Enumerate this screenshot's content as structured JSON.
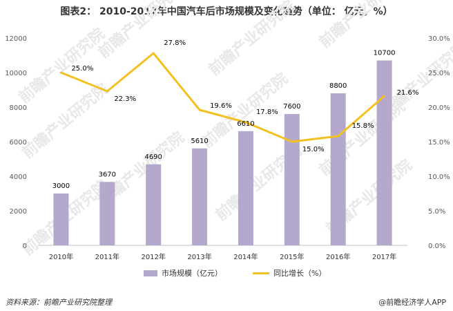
{
  "chart_data": {
    "type": "bar",
    "title": "图表2： 2010-2017年中国汽车后市场规模及变化趋势（单位： 亿元，%）",
    "categories": [
      "2010年",
      "2011年",
      "2012年",
      "2013年",
      "2014年",
      "2015年",
      "2016年",
      "2017年"
    ],
    "series": [
      {
        "name": "市场规模（亿元）",
        "type": "bar",
        "axis": "left",
        "values": [
          3000,
          3670,
          4690,
          5610,
          6610,
          7600,
          8800,
          10700
        ],
        "labels": [
          "3000",
          "3670",
          "4690",
          "5610",
          "6610",
          "7600",
          "8800",
          "10700"
        ]
      },
      {
        "name": "同比增长（%）",
        "type": "line",
        "axis": "right",
        "values": [
          25.0,
          22.3,
          27.8,
          19.6,
          17.8,
          15.0,
          15.8,
          21.6
        ],
        "labels": [
          "25.0%",
          "22.3%",
          "27.8%",
          "19.6%",
          "17.8%",
          "15.0%",
          "15.8%",
          "21.6%"
        ]
      }
    ],
    "y_left": {
      "range": [
        0,
        12000
      ],
      "ticks": [
        "0",
        "2000",
        "4000",
        "6000",
        "8000",
        "10000",
        "12000"
      ]
    },
    "y_right": {
      "range": [
        0,
        30
      ],
      "ticks": [
        "0.0%",
        "5.0%",
        "10.0%",
        "15.0%",
        "20.0%",
        "25.0%",
        "30.0%"
      ]
    },
    "grid": false,
    "legend_position": "bottom",
    "colors": {
      "bar": "#b4a8cc",
      "line": "#f2c020"
    }
  },
  "watermark": "前瞻产业研究院",
  "footer": {
    "source": "资料来源：前瞻产业研究院整理",
    "app": "@前瞻经济学人APP"
  }
}
